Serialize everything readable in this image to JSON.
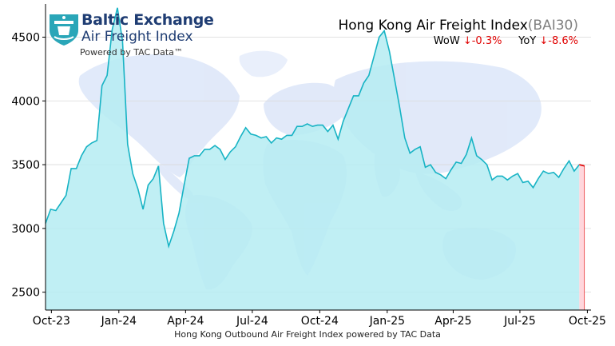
{
  "brand": {
    "name": "Baltic Exchange",
    "sub": "Air Freight Index",
    "powered": "Powered by TAC Data™",
    "colors": {
      "navy": "#1f3d73",
      "teal": "#2aa6b8"
    },
    "icon": "baltic-exchange-shield-logo"
  },
  "header": {
    "title": "Hong Kong Air Freight Index",
    "code": "(BAI30)",
    "wow_label": "WoW",
    "wow_value": "↓-0.3%",
    "yoy_label": "YoY",
    "yoy_value": "↓-8.6%"
  },
  "chart_data": {
    "type": "area",
    "title": "Hong Kong Air Freight Index(BAI30)",
    "xlabel": "Hong Kong Outbound Air Freight Index powered by TAC Data",
    "ylabel": "",
    "ylim": [
      2360,
      4760
    ],
    "yticks": [
      2500,
      3000,
      3500,
      4000,
      4500
    ],
    "xlim": [
      "2023-09-23",
      "2025-10-06"
    ],
    "xticks": [
      {
        "date": "2023-10-01",
        "label": "Oct-23"
      },
      {
        "date": "2024-01-01",
        "label": "Jan-24"
      },
      {
        "date": "2024-04-01",
        "label": "Apr-24"
      },
      {
        "date": "2024-07-01",
        "label": "Jul-24"
      },
      {
        "date": "2024-10-01",
        "label": "Oct-24"
      },
      {
        "date": "2025-01-01",
        "label": "Jan-25"
      },
      {
        "date": "2025-04-01",
        "label": "Apr-25"
      },
      {
        "date": "2025-07-01",
        "label": "Jul-25"
      },
      {
        "date": "2025-10-01",
        "label": "Oct-25"
      }
    ],
    "grid": "horizontal",
    "background": "world-map",
    "colors": {
      "line": "#17b3c4",
      "fill": "#b5ecf2",
      "latest": "#e00000",
      "latest_fill": "#ffd6dc"
    },
    "series": [
      {
        "x": [
          "2023-09-23",
          "2023-09-30",
          "2023-10-07",
          "2023-10-14",
          "2023-10-21",
          "2023-10-28",
          "2023-11-04",
          "2023-11-11",
          "2023-11-18",
          "2023-11-25",
          "2023-12-02",
          "2023-12-09",
          "2023-12-16",
          "2023-12-23",
          "2023-12-30",
          "2024-01-06",
          "2024-01-13",
          "2024-01-20",
          "2024-01-27",
          "2024-02-03",
          "2024-02-10",
          "2024-02-17",
          "2024-02-24",
          "2024-03-02",
          "2024-03-09",
          "2024-03-16",
          "2024-03-23",
          "2024-03-30",
          "2024-04-06",
          "2024-04-13",
          "2024-04-20",
          "2024-04-27",
          "2024-05-04",
          "2024-05-11",
          "2024-05-18",
          "2024-05-25",
          "2024-06-01",
          "2024-06-08",
          "2024-06-15",
          "2024-06-22",
          "2024-06-29",
          "2024-07-06",
          "2024-07-13",
          "2024-07-20",
          "2024-07-27",
          "2024-08-03",
          "2024-08-10",
          "2024-08-17",
          "2024-08-24",
          "2024-08-31",
          "2024-09-07",
          "2024-09-14",
          "2024-09-21",
          "2024-09-28",
          "2024-10-05",
          "2024-10-12",
          "2024-10-19",
          "2024-10-26",
          "2024-11-02",
          "2024-11-09",
          "2024-11-16",
          "2024-11-23",
          "2024-11-30",
          "2024-12-07",
          "2024-12-14",
          "2024-12-21",
          "2024-12-28",
          "2025-01-04",
          "2025-01-11",
          "2025-01-18",
          "2025-01-25",
          "2025-02-01",
          "2025-02-08",
          "2025-02-15",
          "2025-02-22",
          "2025-03-01",
          "2025-03-08",
          "2025-03-15",
          "2025-03-22",
          "2025-03-29",
          "2025-04-05",
          "2025-04-12",
          "2025-04-19",
          "2025-04-26",
          "2025-05-03",
          "2025-05-10",
          "2025-05-17",
          "2025-05-24",
          "2025-05-31",
          "2025-06-07",
          "2025-06-14",
          "2025-06-21",
          "2025-06-28",
          "2025-07-05",
          "2025-07-12",
          "2025-07-19",
          "2025-07-26",
          "2025-08-02",
          "2025-08-09",
          "2025-08-16",
          "2025-08-23",
          "2025-08-30",
          "2025-09-06",
          "2025-09-13",
          "2025-09-20"
        ],
        "values": [
          3040,
          3150,
          3140,
          3200,
          3260,
          3470,
          3470,
          3570,
          3640,
          3670,
          3690,
          4120,
          4200,
          4560,
          4730,
          4470,
          3660,
          3430,
          3310,
          3150,
          3340,
          3390,
          3490,
          3040,
          2860,
          2980,
          3120,
          3340,
          3550,
          3570,
          3570,
          3620,
          3620,
          3650,
          3620,
          3540,
          3600,
          3640,
          3720,
          3790,
          3740,
          3730,
          3710,
          3720,
          3670,
          3710,
          3700,
          3730,
          3730,
          3800,
          3800,
          3820,
          3800,
          3810,
          3810,
          3760,
          3810,
          3700,
          3840,
          3940,
          4040,
          4040,
          4140,
          4200,
          4350,
          4500,
          4550,
          4390,
          4170,
          3950,
          3710,
          3590,
          3620,
          3640,
          3480,
          3500,
          3440,
          3420,
          3390,
          3460,
          3520,
          3510,
          3580,
          3710,
          3570,
          3540,
          3500,
          3380,
          3410,
          3410,
          3380,
          3410,
          3430,
          3360,
          3370,
          3320,
          3390,
          3450,
          3430,
          3440,
          3400,
          3470,
          3530,
          3450,
          3500
        ]
      }
    ],
    "latest": {
      "x": [
        "2025-09-20",
        "2025-09-27"
      ],
      "values": [
        3500,
        3490
      ]
    }
  }
}
